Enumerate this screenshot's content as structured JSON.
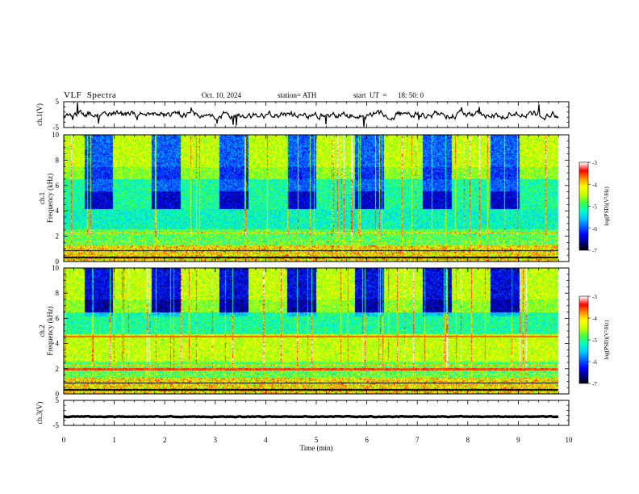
{
  "header": {
    "title": "VLF  Spectra",
    "date": "Oct. 10, 2024",
    "station": "station= ATH",
    "start_label": "start  UT  =",
    "start_time": "18: 50: 0"
  },
  "colors": {
    "colormap": [
      "#000000",
      "#00007f",
      "#0000ff",
      "#0060ff",
      "#00c8ff",
      "#00ffc8",
      "#40ff40",
      "#c8ff00",
      "#ffff00",
      "#ff9000",
      "#ff0000",
      "#ffffff"
    ],
    "trace": "#000000"
  },
  "chart_data": [
    {
      "id": "ch1-waveform",
      "type": "line",
      "ylabel": "ch.1(V)",
      "ylim": [
        -5,
        5
      ],
      "yticks": [
        "5",
        "-5"
      ],
      "xlim": [
        0,
        10
      ],
      "x_end": 9.8,
      "level": 0,
      "spread": 1.2
    },
    {
      "id": "ch1-spectrogram",
      "type": "heatmap",
      "ylabel": "ch.1",
      "ylabel2": "Frequency  (kHz)",
      "ylim": [
        0,
        10
      ],
      "yticks": [
        "0",
        "2",
        "4",
        "6",
        "8",
        "10"
      ],
      "xlim": [
        0,
        10
      ],
      "x_end": 9.8,
      "colorbar": {
        "label": "log(PSD)(V²/Hz)",
        "range": [
          -7,
          -3
        ],
        "ticks": [
          "-3",
          "-4",
          "-5",
          "-6",
          "-7"
        ]
      }
    },
    {
      "id": "ch2-spectrogram",
      "type": "heatmap",
      "ylabel": "ch.2",
      "ylabel2": "Frequency  (kHz)",
      "ylim": [
        0,
        10
      ],
      "yticks": [
        "0",
        "2",
        "4",
        "6",
        "8",
        "10"
      ],
      "xlim": [
        0,
        10
      ],
      "x_end": 9.8,
      "colorbar": {
        "label": "log(PSD)(V²/Hz)",
        "range": [
          -7,
          -3
        ],
        "ticks": [
          "-3",
          "-4",
          "-5",
          "-6",
          "-7"
        ]
      }
    },
    {
      "id": "ch3-waveform",
      "type": "line",
      "ylabel": "ch.3(V)",
      "ylim": [
        -5,
        5
      ],
      "yticks": [
        "5",
        "-5"
      ],
      "xlim": [
        0,
        10
      ],
      "x_end": 9.8,
      "level": -1.5,
      "spread": 0.15
    }
  ],
  "xaxis": {
    "label": "Time  (min)",
    "ticks": [
      "0",
      "1",
      "2",
      "3",
      "4",
      "5",
      "6",
      "7",
      "8",
      "9",
      "10"
    ]
  }
}
